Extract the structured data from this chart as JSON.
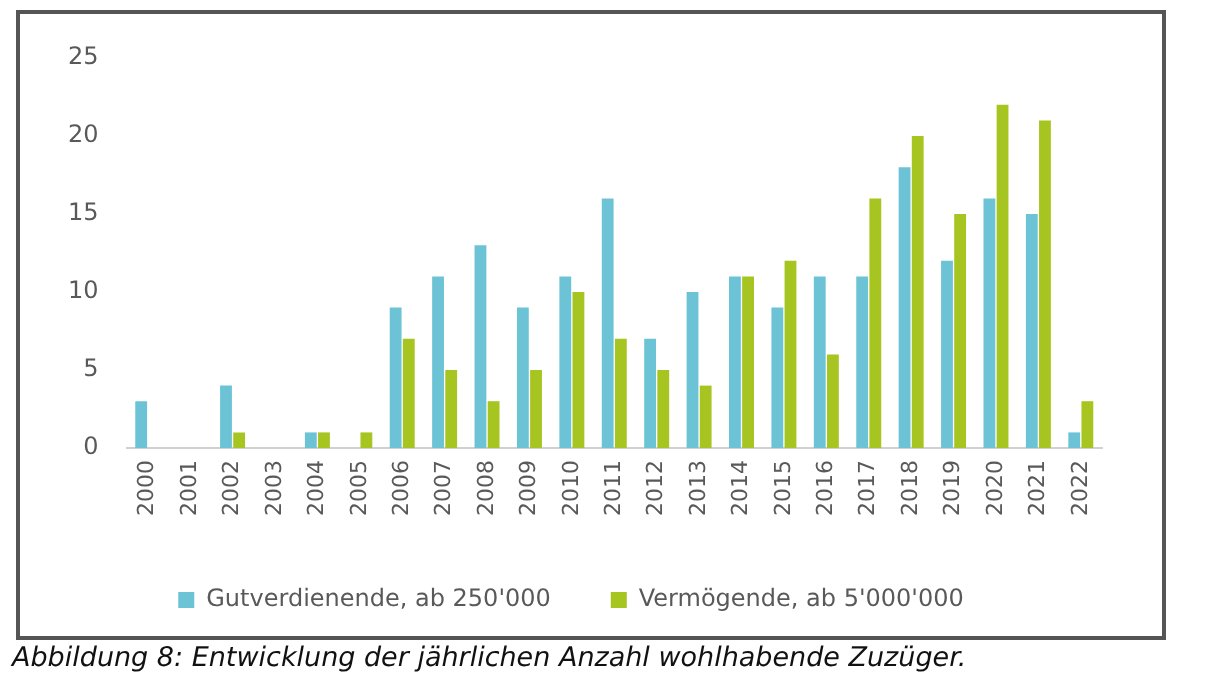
{
  "chart_data": {
    "type": "bar",
    "categories": [
      "2000",
      "2001",
      "2002",
      "2003",
      "2004",
      "2005",
      "2006",
      "2007",
      "2008",
      "2009",
      "2010",
      "2011",
      "2012",
      "2013",
      "2014",
      "2015",
      "2016",
      "2017",
      "2018",
      "2019",
      "2020",
      "2021",
      "2022"
    ],
    "series": [
      {
        "name": "Gutverdienende, ab 250'000",
        "color": "#6cc3d6",
        "values": [
          3,
          0,
          4,
          0,
          1,
          0,
          9,
          11,
          13,
          9,
          11,
          16,
          7,
          10,
          11,
          9,
          11,
          11,
          18,
          12,
          16,
          15,
          1
        ]
      },
      {
        "name": "Vermögende, ab 5'000'000",
        "color": "#a7c520",
        "values": [
          0,
          0,
          1,
          0,
          1,
          1,
          7,
          5,
          3,
          5,
          10,
          7,
          5,
          4,
          11,
          12,
          6,
          16,
          20,
          15,
          22,
          21,
          3
        ]
      }
    ],
    "ylim": [
      0,
      25
    ],
    "yticks": [
      0,
      5,
      10,
      15,
      20,
      25
    ],
    "grid": false,
    "legend": "bottom",
    "annotations": [
      "Abbildung 8: Entwicklung der jährlichen Anzahl wohlhabende Zuzüger."
    ]
  }
}
